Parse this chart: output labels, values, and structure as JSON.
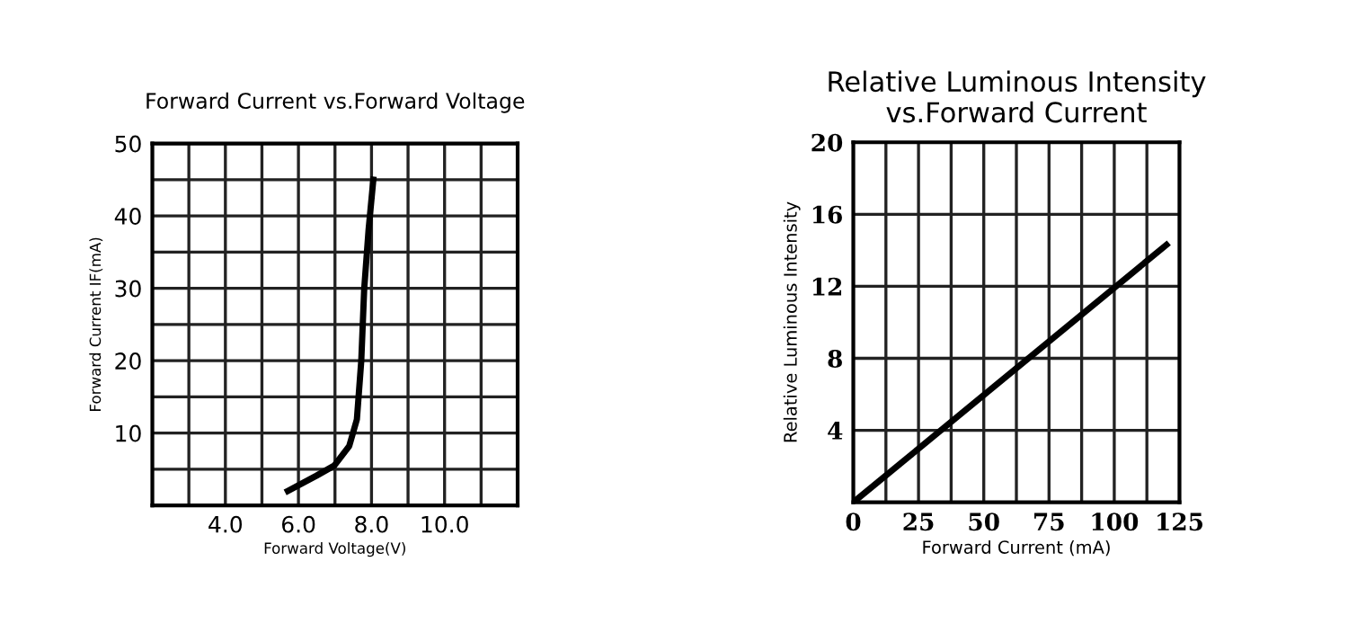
{
  "chart_data": [
    {
      "type": "line",
      "title": "Forward Current vs.Forward Voltage",
      "xlabel": "Forward Voltage(V)",
      "ylabel": "Forward Current IF(mA)",
      "series": [
        {
          "color": "#000000",
          "x": [
            5.71,
            6.49,
            6.98,
            7.39,
            7.6,
            7.72,
            7.8,
            7.92,
            8.05
          ],
          "values": [
            2.0,
            4.1,
            5.5,
            8.2,
            11.9,
            20,
            29.9,
            38.1,
            45
          ]
        }
      ],
      "xlim": [
        2,
        12
      ],
      "xticks": [
        {
          "value": 2,
          "label": null
        },
        {
          "value": 3,
          "label": null
        },
        {
          "value": 4,
          "label": "4.0"
        },
        {
          "value": 5,
          "label": null
        },
        {
          "value": 6,
          "label": "6.0"
        },
        {
          "value": 7,
          "label": null
        },
        {
          "value": 8,
          "label": "8.0"
        },
        {
          "value": 9,
          "label": null
        },
        {
          "value": 10,
          "label": "10.0"
        },
        {
          "value": 11,
          "label": null
        },
        {
          "value": 12,
          "label": null
        }
      ],
      "ylim": [
        0,
        50
      ],
      "yticks": [
        {
          "value": 0,
          "label": null
        },
        {
          "value": 5,
          "label": null
        },
        10,
        {
          "value": 15,
          "label": null
        },
        20,
        {
          "value": 25,
          "label": null
        },
        30,
        {
          "value": 35,
          "label": null
        },
        40,
        {
          "value": 45,
          "label": null
        },
        50
      ],
      "grid": true,
      "legend": false,
      "marker": "none",
      "line_style": "solid"
    },
    {
      "type": "line",
      "title": "Relative Luminous Intensity\nvs.Forward Current",
      "xlabel": "Forward Current (mA)",
      "ylabel": "Relative Luminous Intensity",
      "series": [
        {
          "color": "#000000",
          "x": [
            0,
            120
          ],
          "values": [
            0,
            14.3
          ]
        }
      ],
      "xlim": [
        0,
        125
      ],
      "xticks": [
        0,
        {
          "value": 12.5,
          "label": null
        },
        25,
        {
          "value": 37.5,
          "label": null
        },
        50,
        {
          "value": 62.5,
          "label": null
        },
        75,
        {
          "value": 87.5,
          "label": null
        },
        100,
        {
          "value": 112.5,
          "label": null
        },
        125
      ],
      "ylim": [
        0,
        20
      ],
      "yticks": [
        {
          "value": 0,
          "label": null
        },
        4,
        8,
        12,
        16,
        20
      ],
      "grid": true,
      "legend": false,
      "marker": "none",
      "line_style": "solid"
    }
  ]
}
